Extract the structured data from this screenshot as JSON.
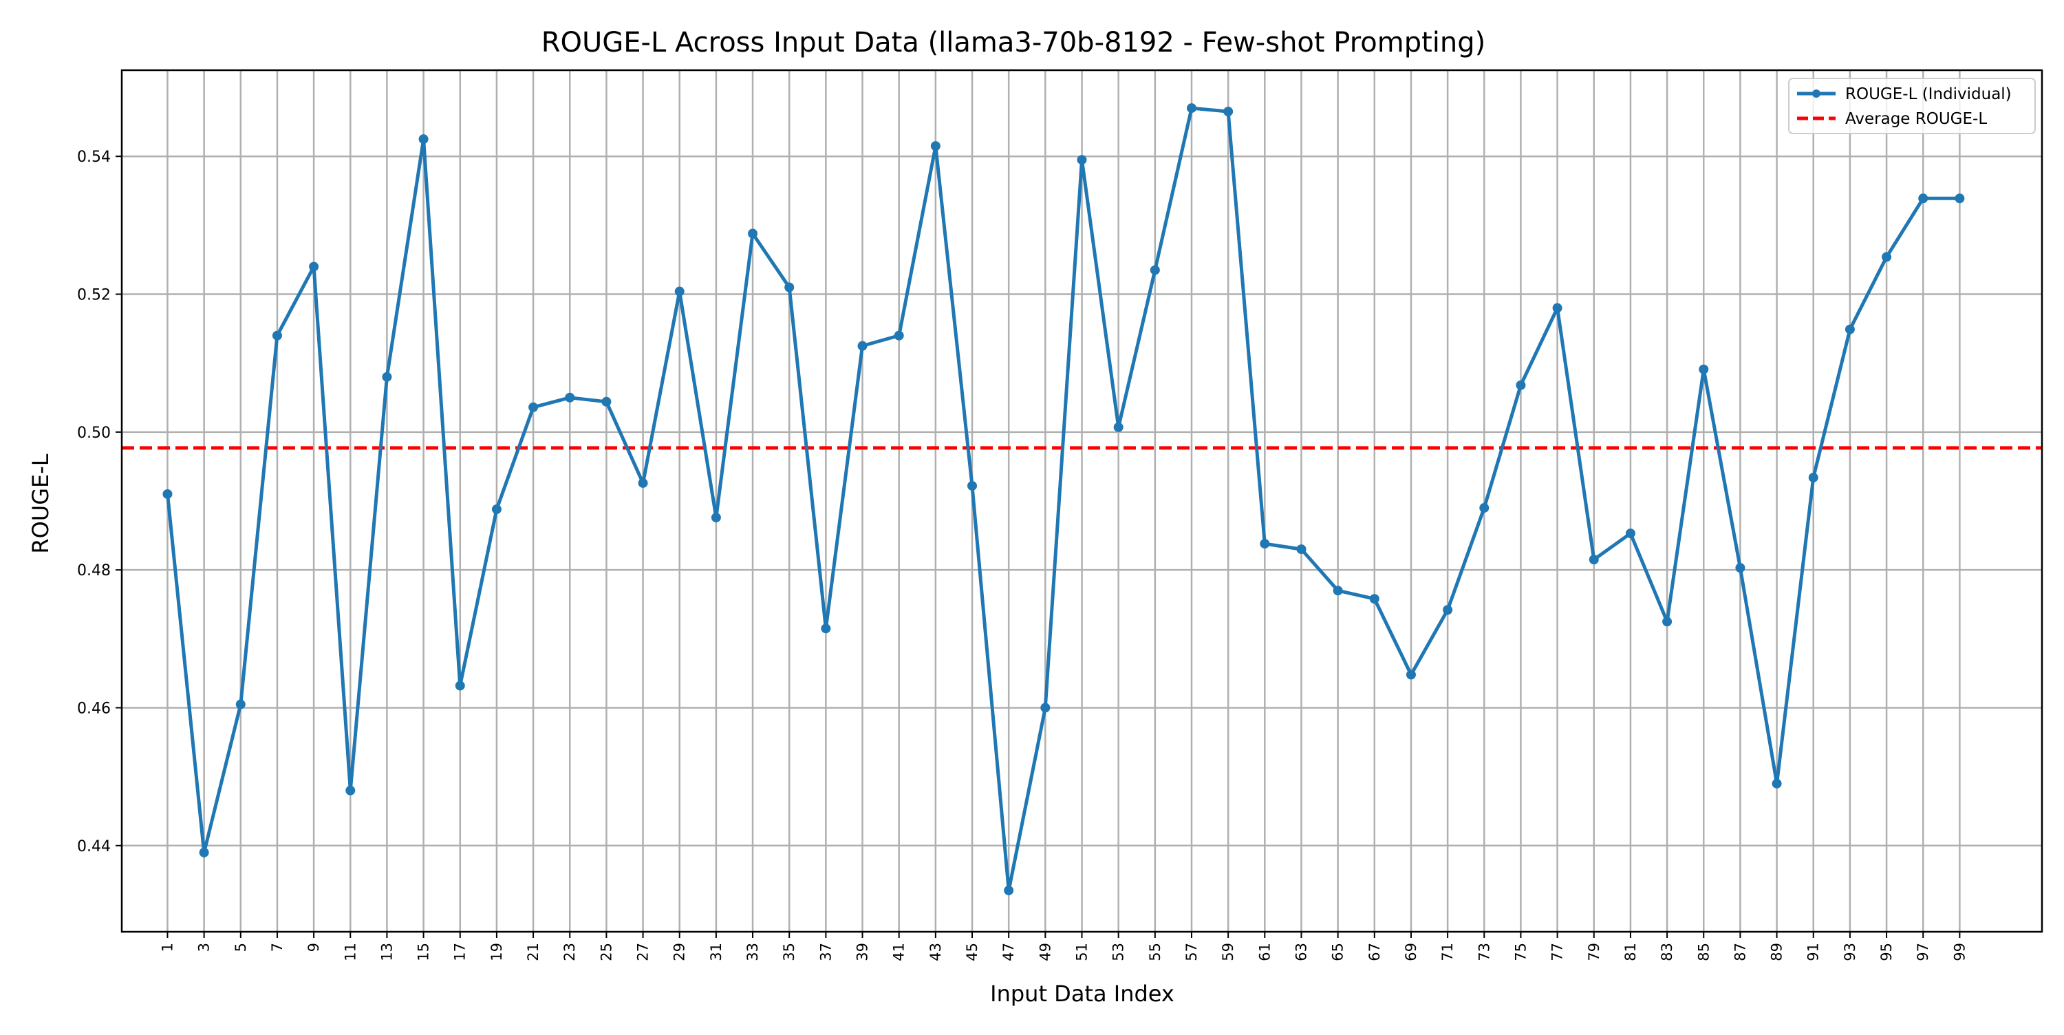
{
  "chart_data": {
    "type": "line",
    "title": "ROUGE-L Across Input Data (llama3-70b-8192 - Few-shot Prompting)",
    "xlabel": "Input Data Index",
    "ylabel": "ROUGE-L",
    "xlim": [
      -1.5,
      103.5
    ],
    "ylim": [
      0.4275,
      0.5525
    ],
    "grid": true,
    "legend_position": "top-right",
    "x_ticks": [
      1,
      3,
      5,
      7,
      9,
      11,
      13,
      15,
      17,
      19,
      21,
      23,
      25,
      27,
      29,
      31,
      33,
      35,
      37,
      39,
      41,
      43,
      45,
      47,
      49,
      51,
      53,
      55,
      57,
      59,
      61,
      63,
      65,
      67,
      69,
      71,
      73,
      75,
      77,
      79,
      81,
      83,
      85,
      87,
      89,
      91,
      93,
      95,
      97,
      99
    ],
    "y_ticks": [
      0.44,
      0.46,
      0.48,
      0.5,
      0.52,
      0.54
    ],
    "y_tick_labels": [
      "0.44",
      "0.46",
      "0.48",
      "0.50",
      "0.52",
      "0.54"
    ],
    "x": [
      1,
      3,
      5,
      7,
      9,
      11,
      13,
      15,
      17,
      19,
      21,
      23,
      25,
      27,
      29,
      31,
      33,
      35,
      37,
      39,
      41,
      43,
      45,
      47,
      49,
      51,
      53,
      55,
      57,
      59,
      61,
      63,
      65,
      67,
      69,
      71,
      73,
      75,
      77,
      79,
      81,
      83,
      85,
      87,
      89,
      91,
      93,
      95,
      97,
      99
    ],
    "series": [
      {
        "name": "ROUGE-L (Individual)",
        "color": "#1f77b4",
        "style": "solid-markers",
        "values": [
          0.491,
          0.439,
          0.4605,
          0.514,
          0.524,
          0.448,
          0.508,
          0.5425,
          0.4632,
          0.4888,
          0.5036,
          0.505,
          0.5044,
          0.4926,
          0.5204,
          0.4876,
          0.5288,
          0.521,
          0.4715,
          0.5125,
          0.514,
          0.5415,
          0.4922,
          0.4335,
          0.46,
          0.5395,
          0.5007,
          0.5235,
          0.547,
          0.5465,
          0.4838,
          0.483,
          0.477,
          0.4758,
          0.4648,
          0.4742,
          0.489,
          0.5068,
          0.518,
          0.4815,
          0.4853,
          0.4725,
          0.5091,
          0.4803,
          0.449,
          0.4934,
          0.5149,
          0.5254,
          0.5339,
          0.5339
        ]
      }
    ],
    "average": {
      "name": "Average ROUGE-L",
      "value": 0.4977,
      "color": "#ff0000",
      "style": "dashed"
    }
  }
}
